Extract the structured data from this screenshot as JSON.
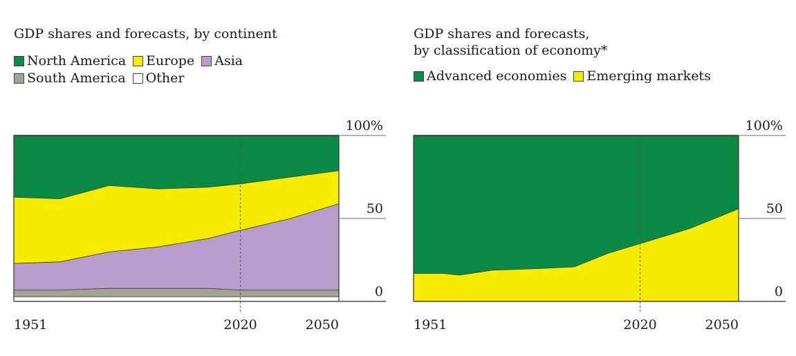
{
  "charts": [
    {
      "title_lines": [
        "GDP shares and forecasts, by continent"
      ],
      "legend_rows": [
        [
          {
            "label": "North America",
            "color": "#0a8a44"
          },
          {
            "label": "Europe",
            "color": "#f6ec00"
          },
          {
            "label": "Asia",
            "color": "#b89ccc"
          }
        ],
        [
          {
            "label": "South America",
            "color": "#a3a396"
          },
          {
            "label": "Other",
            "color": "#ffffff"
          }
        ]
      ]
    },
    {
      "title_lines": [
        "GDP shares and forecasts,",
        "by classification of economy*"
      ],
      "legend_rows": [
        [
          {
            "label": "Advanced economies",
            "color": "#0a8a44"
          },
          {
            "label": "Emerging markets",
            "color": "#f6ec00"
          }
        ]
      ]
    }
  ],
  "chart_data": [
    {
      "type": "area",
      "stacked": true,
      "title": "GDP shares and forecasts, by continent",
      "x": [
        1951,
        1965,
        1980,
        1995,
        2010,
        2020,
        2035,
        2050
      ],
      "x_tick_labels": [
        "1951",
        "2020",
        "2050"
      ],
      "x_ticks": [
        1951,
        2020,
        2050
      ],
      "y_tick_labels": [
        "100%",
        "50",
        "0"
      ],
      "y_ticks": [
        100,
        50,
        0
      ],
      "ylim": [
        0,
        100
      ],
      "forecast_from": 2020,
      "series": [
        {
          "name": "Other",
          "color": "#ffffff",
          "values": [
            3,
            3,
            3,
            3,
            3,
            3,
            3,
            3
          ]
        },
        {
          "name": "South America",
          "color": "#a3a396",
          "values": [
            4,
            4,
            5,
            5,
            5,
            4,
            4,
            4
          ]
        },
        {
          "name": "Asia",
          "color": "#b89ccc",
          "values": [
            16,
            17,
            22,
            25,
            30,
            36,
            43,
            52
          ]
        },
        {
          "name": "Europe",
          "color": "#f6ec00",
          "values": [
            40,
            38,
            40,
            35,
            31,
            28,
            25,
            20
          ]
        },
        {
          "name": "North America",
          "color": "#0a8a44",
          "values": [
            37,
            38,
            30,
            32,
            31,
            29,
            25,
            21
          ]
        }
      ]
    },
    {
      "type": "area",
      "stacked": true,
      "title": "GDP shares and forecasts, by classification of economy*",
      "x": [
        1951,
        1960,
        1965,
        1975,
        1990,
        2000,
        2010,
        2020,
        2035,
        2050
      ],
      "x_tick_labels": [
        "1951",
        "2020",
        "2050"
      ],
      "x_ticks": [
        1951,
        2020,
        2050
      ],
      "y_tick_labels": [
        "100%",
        "50",
        "0"
      ],
      "y_ticks": [
        100,
        50,
        0
      ],
      "ylim": [
        0,
        100
      ],
      "forecast_from": 2020,
      "series": [
        {
          "name": "Emerging markets",
          "color": "#f6ec00",
          "values": [
            17,
            17,
            16,
            19,
            20,
            21,
            29,
            35,
            44,
            56
          ]
        },
        {
          "name": "Advanced economies",
          "color": "#0a8a44",
          "values": [
            83,
            83,
            84,
            81,
            80,
            79,
            71,
            65,
            56,
            44
          ]
        }
      ]
    }
  ]
}
